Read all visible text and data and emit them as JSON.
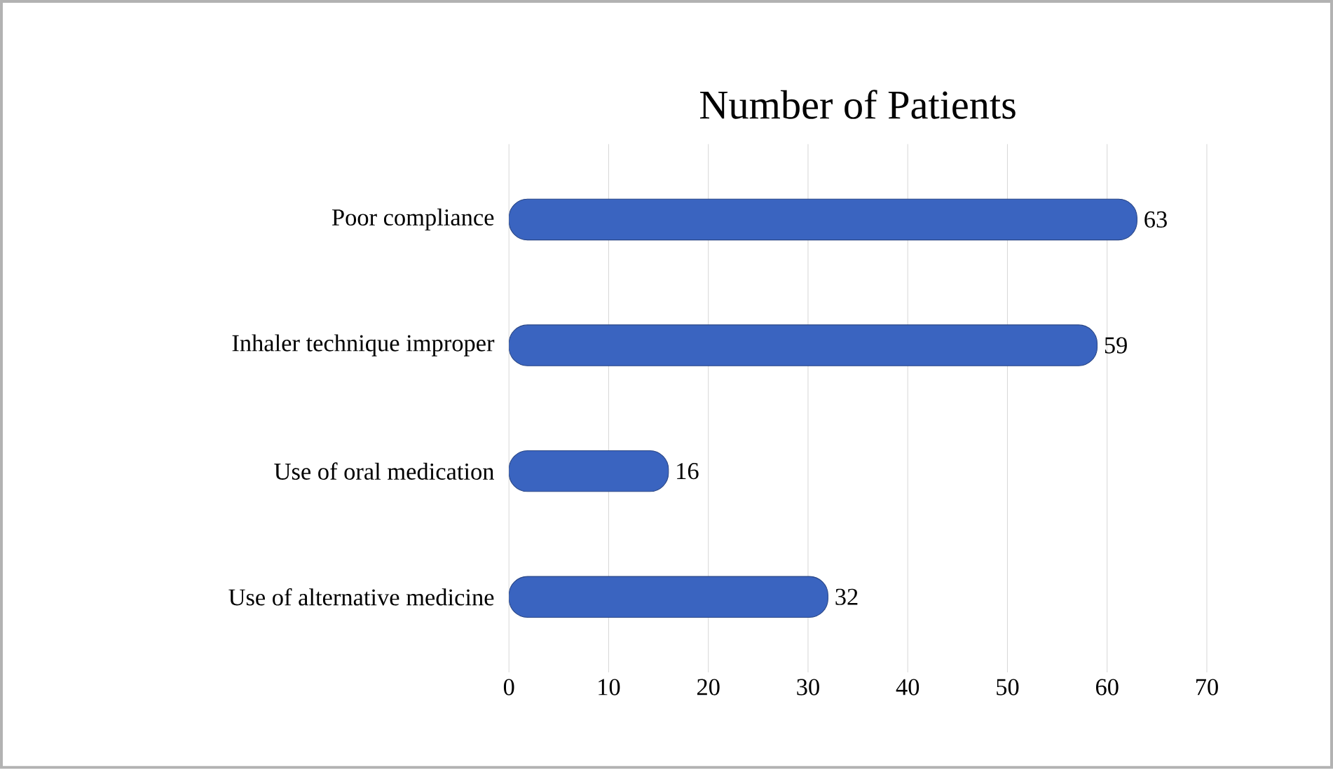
{
  "chart_data": {
    "type": "bar",
    "orientation": "horizontal",
    "title": "Number of Patients",
    "categories": [
      "Poor compliance",
      "Inhaler technique improper",
      "Use of oral medication",
      "Use of alternative medicine"
    ],
    "values": [
      63,
      59,
      16,
      32
    ],
    "color": "#3a64c0",
    "xlim": [
      0,
      70
    ],
    "xticks": [
      0,
      10,
      20,
      30,
      40,
      50,
      60,
      70
    ],
    "grid": "x",
    "data_labels": true
  }
}
